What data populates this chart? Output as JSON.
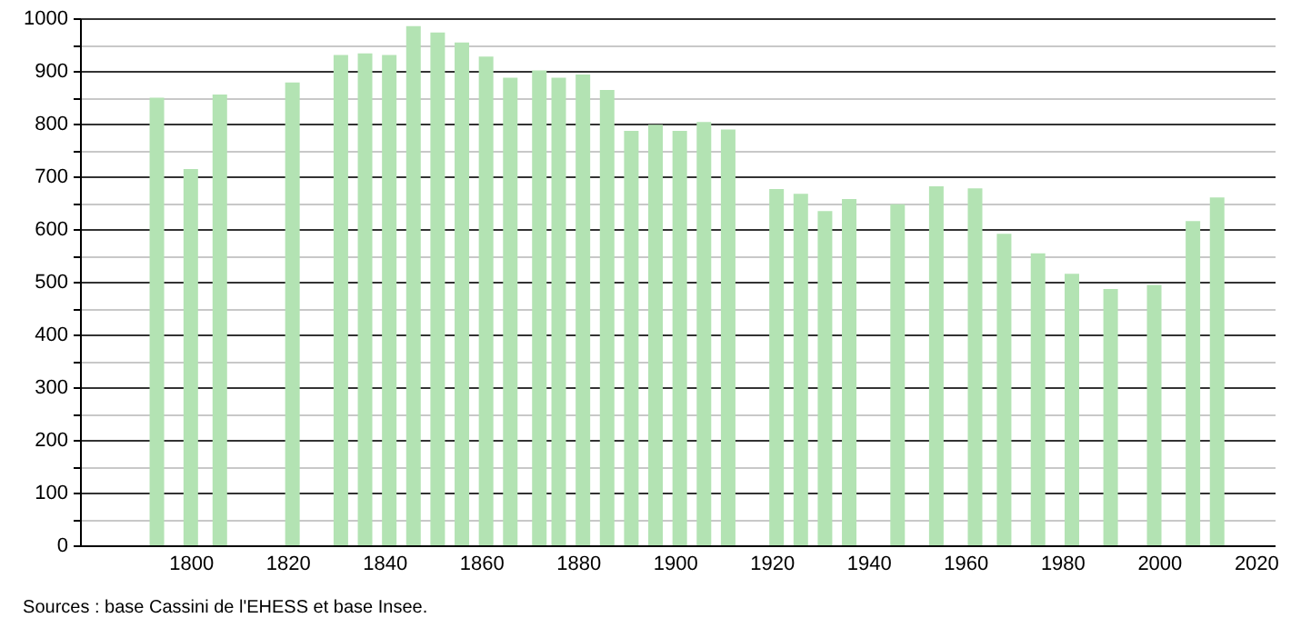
{
  "chart_data": {
    "type": "bar",
    "x": [
      1793,
      1800,
      1806,
      1821,
      1831,
      1836,
      1841,
      1846,
      1851,
      1856,
      1861,
      1866,
      1872,
      1876,
      1881,
      1886,
      1891,
      1896,
      1901,
      1906,
      1911,
      1921,
      1926,
      1931,
      1936,
      1946,
      1954,
      1962,
      1968,
      1975,
      1982,
      1990,
      1999,
      2007,
      2012
    ],
    "values": [
      849,
      714,
      855,
      878,
      930,
      933,
      930,
      985,
      973,
      954,
      927,
      887,
      901,
      887,
      893,
      864,
      786,
      798,
      786,
      803,
      789,
      676,
      667,
      634,
      657,
      647,
      681,
      677,
      591,
      554,
      515,
      486,
      494,
      615,
      660
    ],
    "color": "#b3e3b3",
    "xlim": [
      1779,
      2022
    ],
    "xticks": [
      1800,
      1820,
      1840,
      1860,
      1880,
      1900,
      1920,
      1940,
      1960,
      1980,
      2000,
      2020
    ],
    "ylim": [
      0,
      1000
    ],
    "yticks": [
      0,
      {
        "value": 50,
        "label": null
      },
      100,
      {
        "value": 150,
        "label": null
      },
      200,
      {
        "value": 250,
        "label": null
      },
      300,
      {
        "value": 350,
        "label": null
      },
      400,
      {
        "value": 450,
        "label": null
      },
      500,
      {
        "value": 550,
        "label": null
      },
      600,
      {
        "value": 650,
        "label": null
      },
      700,
      {
        "value": 750,
        "label": null
      },
      800,
      {
        "value": 850,
        "label": null
      },
      900,
      {
        "value": 950,
        "label": null
      },
      1000
    ],
    "grid": "y",
    "annotations": [
      "Sources : base Cassini de l'EHESS et base Insee."
    ]
  }
}
